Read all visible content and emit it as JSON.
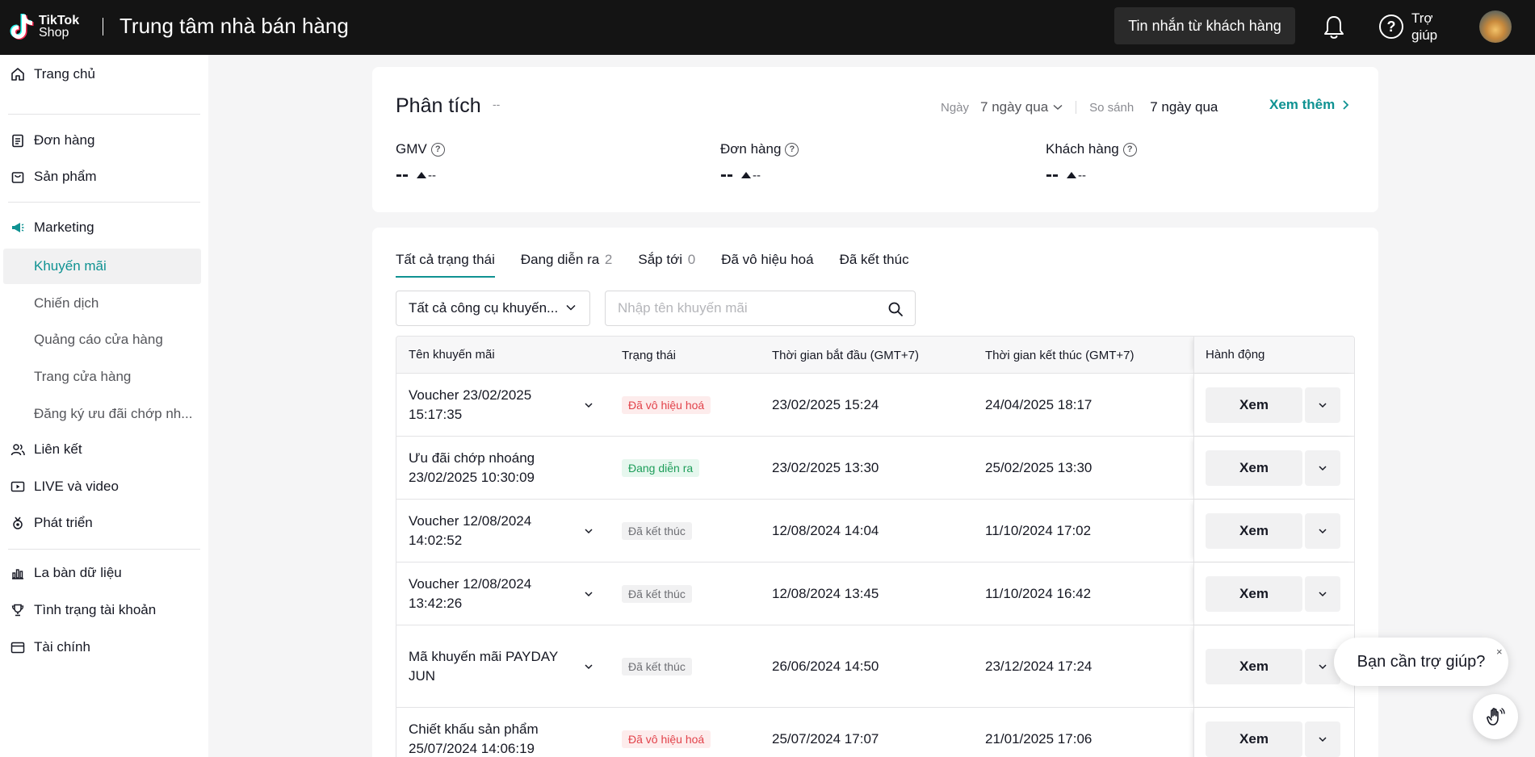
{
  "header": {
    "logo_line1": "TikTok",
    "logo_line2": "Shop",
    "title": "Trung tâm nhà bán hàng",
    "messages_button": "Tin nhắn từ khách hàng",
    "help_label": "Trợ giúp"
  },
  "sidebar": {
    "home": "Trang chủ",
    "orders": "Đơn hàng",
    "products": "Sản phẩm",
    "marketing": "Marketing",
    "marketing_sub": [
      "Khuyến mãi",
      "Chiến dịch",
      "Quảng cáo cửa hàng",
      "Trang cửa hàng",
      "Đăng ký ưu đãi chớp nh..."
    ],
    "affiliate": "Liên kết",
    "live_video": "LIVE và video",
    "growth": "Phát triển",
    "data_compass": "La bàn dữ liệu",
    "account_health": "Tình trạng tài khoản",
    "finance": "Tài chính"
  },
  "analytics": {
    "title": "Phân tích",
    "title_suffix": "--",
    "date_label": "Ngày",
    "date_value": "7 ngày qua",
    "compare_label": "So sánh",
    "compare_value": "7 ngày qua",
    "see_more": "Xem thêm",
    "metrics": [
      {
        "label": "GMV",
        "value": "--",
        "change": "--"
      },
      {
        "label": "Đơn hàng",
        "value": "--",
        "change": "--"
      },
      {
        "label": "Khách hàng",
        "value": "--",
        "change": "--"
      }
    ]
  },
  "promotions": {
    "tabs": [
      {
        "label": "Tất cả trạng thái",
        "count": ""
      },
      {
        "label": "Đang diễn ra",
        "count": "2"
      },
      {
        "label": "Sắp tới",
        "count": "0"
      },
      {
        "label": "Đã vô hiệu hoá",
        "count": ""
      },
      {
        "label": "Đã kết thúc",
        "count": ""
      }
    ],
    "tool_filter": "Tất cả công cụ khuyến...",
    "search_placeholder": "Nhập tên khuyến mãi",
    "columns": {
      "name": "Tên khuyến mãi",
      "status": "Trạng thái",
      "start": "Thời gian bắt đầu (GMT+7)",
      "end": "Thời gian kết thúc (GMT+7)",
      "action": "Hành động"
    },
    "rows": [
      {
        "name": "Voucher 23/02/2025 15:17:35",
        "status": "Đã vô hiệu hoá",
        "start": "23/02/2025 15:24",
        "end": "24/04/2025 18:17",
        "action": "Xem"
      },
      {
        "name": "Ưu đãi chớp nhoáng 23/02/2025 10:30:09",
        "status": "Đang diễn ra",
        "start": "23/02/2025 13:30",
        "end": "25/02/2025 13:30",
        "action": "Xem"
      },
      {
        "name": "Voucher 12/08/2024 14:02:52",
        "status": "Đã kết thúc",
        "start": "12/08/2024 14:04",
        "end": "11/10/2024 17:02",
        "action": "Xem"
      },
      {
        "name": "Voucher 12/08/2024 13:42:26",
        "status": "Đã kết thúc",
        "start": "12/08/2024 13:45",
        "end": "11/10/2024 16:42",
        "action": "Xem"
      },
      {
        "name": "Mã khuyến mãi PAYDAY JUN",
        "status": "Đã kết thúc",
        "start": "26/06/2024 14:50",
        "end": "23/12/2024 17:24",
        "action": "Xem"
      },
      {
        "name": "Chiết khấu sản phẩm 25/07/2024 14:06:19",
        "status": "Đã vô hiệu hoá",
        "start": "25/07/2024 17:07",
        "end": "21/01/2025 17:06",
        "action": "Xem"
      }
    ]
  },
  "help_widget": {
    "text": "Bạn cần trợ giúp?",
    "close": "×"
  },
  "colors": {
    "accent": "#0f9292",
    "topbar": "#141414"
  }
}
